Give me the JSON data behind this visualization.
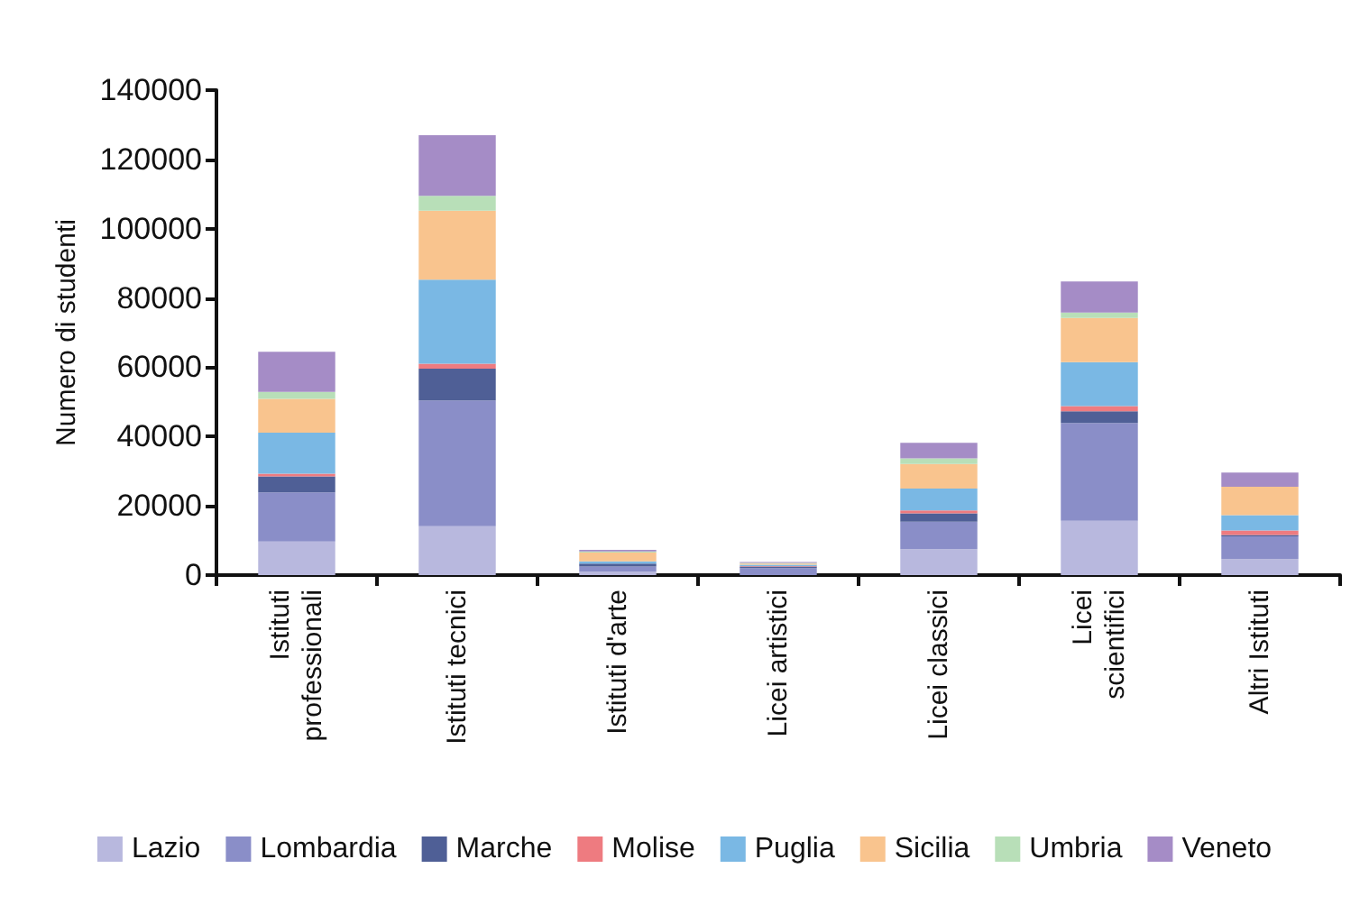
{
  "chart_data": {
    "type": "bar",
    "stacked": true,
    "ylabel": "Numero di studenti",
    "categories": [
      "Istituti\nprofessionali",
      "Istituti tecnici",
      "Istituti d'arte",
      "Licei artistici",
      "Licei classici",
      "Licei\nscientifici",
      "Altri Istituti"
    ],
    "series": [
      {
        "name": "Lazio",
        "color": "#b8b8de",
        "values": [
          9700,
          14100,
          1000,
          null,
          7500,
          15700,
          4600
        ]
      },
      {
        "name": "Lombardia",
        "color": "#8a8ec8",
        "values": [
          14200,
          36300,
          1500,
          2000,
          7900,
          28200,
          6600
        ]
      },
      {
        "name": "Marche",
        "color": "#4f5f96",
        "values": [
          4600,
          9200,
          800,
          500,
          2400,
          3400,
          400
        ]
      },
      {
        "name": "Molise",
        "color": "#ee7b80",
        "values": [
          800,
          1400,
          null,
          100,
          900,
          1500,
          1300
        ]
      },
      {
        "name": "Puglia",
        "color": "#7ab8e4",
        "values": [
          11800,
          24300,
          700,
          400,
          6300,
          12700,
          4400
        ]
      },
      {
        "name": "Sicilia",
        "color": "#f9c48e",
        "values": [
          9800,
          19900,
          2500,
          300,
          7100,
          12700,
          8200
        ]
      },
      {
        "name": "Umbria",
        "color": "#b8dfb8",
        "values": [
          2000,
          4300,
          300,
          200,
          1600,
          1600,
          null
        ]
      },
      {
        "name": "Veneto",
        "color": "#a58cc6",
        "values": [
          11600,
          17500,
          500,
          300,
          4500,
          9000,
          4100
        ]
      }
    ],
    "ylim": [
      0,
      140000
    ],
    "yticks": [
      0,
      20000,
      40000,
      60000,
      80000,
      100000,
      120000,
      140000
    ],
    "grid": false,
    "legend": "bottom"
  }
}
